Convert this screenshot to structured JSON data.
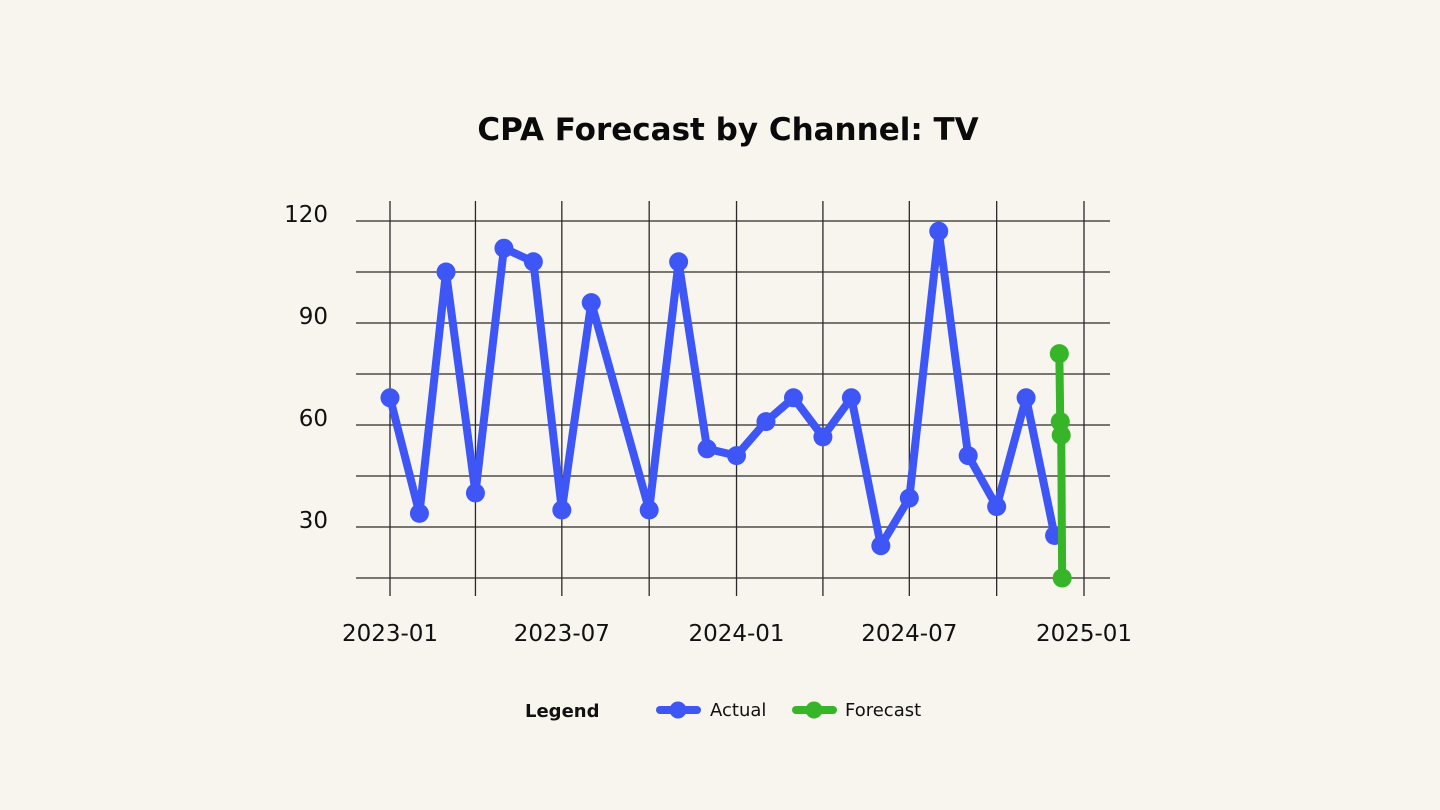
{
  "chart_data": {
    "type": "line",
    "title": "CPA Forecast by Channel: TV",
    "xlabel": "",
    "ylabel": "",
    "x_ticks": [
      "2023-01",
      "2023-07",
      "2024-01",
      "2024-07",
      "2025-01"
    ],
    "x_gridlines": [
      "2023-01",
      "2023-04",
      "2023-07",
      "2023-10",
      "2024-01",
      "2024-04",
      "2024-07",
      "2024-10",
      "2025-01"
    ],
    "y_ticks": [
      30,
      60,
      90,
      120
    ],
    "y_gridlines": [
      15,
      30,
      45,
      60,
      75,
      90,
      105,
      120
    ],
    "xlim": [
      "2022-12-01",
      "2025-01-20"
    ],
    "ylim": [
      10,
      122
    ],
    "grid": true,
    "legend": {
      "title": "Legend",
      "placement": "bottom-center"
    },
    "series": [
      {
        "name": "Actual",
        "color": "#3D56F5",
        "x": [
          "2023-01-01",
          "2023-02-01",
          "2023-03-01",
          "2023-04-01",
          "2023-05-01",
          "2023-06-01",
          "2023-07-01",
          "2023-08-01",
          "2023-10-01",
          "2023-11-01",
          "2023-12-01",
          "2024-01-01",
          "2024-02-01",
          "2024-03-01",
          "2024-04-01",
          "2024-05-01",
          "2024-06-01",
          "2024-07-01",
          "2024-08-01",
          "2024-09-01",
          "2024-10-01",
          "2024-11-01",
          "2024-12-01"
        ],
        "values": [
          68,
          34,
          105,
          40,
          112,
          108,
          35,
          96,
          35,
          108,
          53,
          51,
          61,
          68,
          56.5,
          68,
          24.5,
          38.5,
          117,
          51,
          36,
          68,
          27.5
        ]
      },
      {
        "name": "Forecast",
        "color": "#35B527",
        "x": [
          "2024-12-06",
          "2024-12-07",
          "2024-12-08",
          "2024-12-09"
        ],
        "values": [
          81,
          61,
          57,
          15
        ]
      }
    ]
  }
}
